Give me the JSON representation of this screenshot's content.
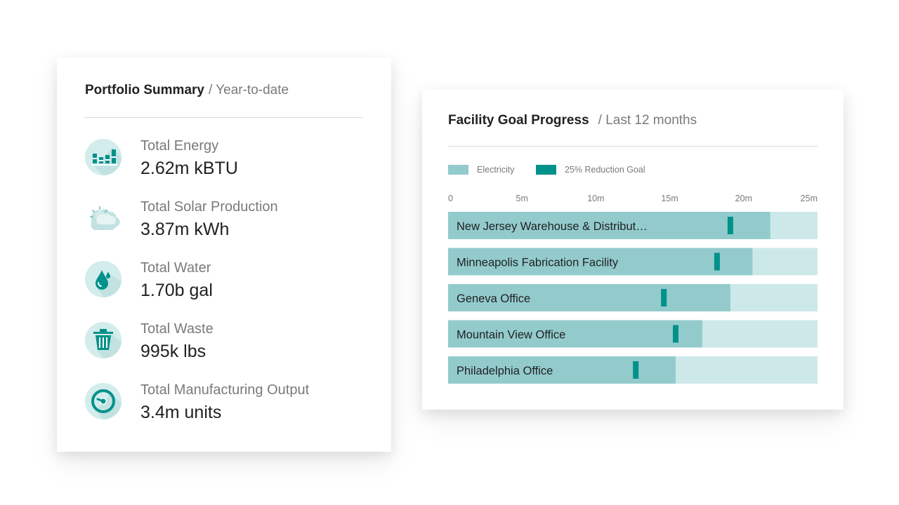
{
  "summary": {
    "title": "Portfolio Summary",
    "subtitle": "/ Year-to-date",
    "metrics": [
      {
        "icon": "energy-bars-icon",
        "label": "Total Energy",
        "value": "2.62m kBTU"
      },
      {
        "icon": "solar-sun-cloud-icon",
        "label": "Total Solar Production",
        "value": "3.87m kWh"
      },
      {
        "icon": "water-drop-icon",
        "label": "Total Water",
        "value": "1.70b gal"
      },
      {
        "icon": "trash-can-icon",
        "label": "Total Waste",
        "value": "995k lbs"
      },
      {
        "icon": "gauge-icon",
        "label": "Total Manufacturing Output",
        "value": "3.4m units"
      }
    ]
  },
  "goals": {
    "title": "Facility Goal Progress",
    "subtitle": "/ Last 12 months",
    "legend": [
      {
        "label": "Electricity",
        "color": "#93cbcc"
      },
      {
        "label": "25% Reduction Goal",
        "color": "#00918a"
      }
    ]
  },
  "colors": {
    "track": "#cde8e8",
    "bar": "#93cbcc",
    "goal": "#00918a",
    "icon_bg": "#d3ecec",
    "icon_fg": "#00918a"
  },
  "chart_data": {
    "type": "bar",
    "orientation": "horizontal",
    "x_ticks": [
      "0",
      "5m",
      "10m",
      "15m",
      "20m",
      "25m"
    ],
    "xlim": [
      0,
      25
    ],
    "categories": [
      "New Jersey Warehouse & Distribut…",
      "Minneapolis Fabrication Facility",
      "Geneva Office",
      "Mountain View Office",
      "Philadelphia Office"
    ],
    "series": [
      {
        "name": "Electricity",
        "values": [
          21.8,
          20.6,
          19.1,
          17.2,
          15.4
        ]
      },
      {
        "name": "25% Reduction Goal",
        "values": [
          19.1,
          18.2,
          14.6,
          15.4,
          12.7
        ]
      }
    ]
  }
}
